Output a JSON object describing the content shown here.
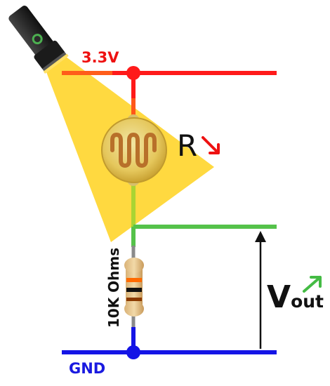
{
  "labels": {
    "supply": "3.3V",
    "ground": "GND",
    "ldr_symbol": "R",
    "resistor_value": "10K Ohms",
    "output_main": "V",
    "output_sub": "out"
  },
  "icons": {
    "light_source": "flashlight-icon",
    "ldr": "photoresistor-icon",
    "resistor": "resistor-icon",
    "ldr_trend": "arrow-down-right-icon",
    "vout_trend": "arrow-up-right-icon"
  },
  "colors": {
    "supply_wire": "#ff1a1a",
    "ground_wire": "#1414e6",
    "output_wire": "#55c24a",
    "light_beam": "#ffd21f",
    "ldr_arrow": "#ee1111",
    "vout_arrow": "#44bb44"
  },
  "resistor_bands": [
    "#ff6a00",
    "#111111",
    "#8b3a00",
    "#c8a032"
  ]
}
